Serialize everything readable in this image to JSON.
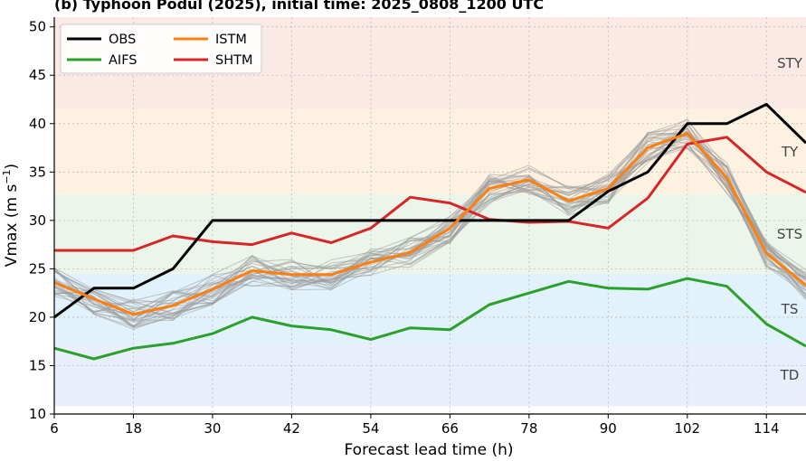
{
  "chart_data": {
    "type": "line",
    "title": "(b) Typhoon Podul (2025), initial time: 2025_0808_1200 UTC",
    "xlabel": "Forecast lead time (h)",
    "ylabel_main": "Vmax (m s",
    "ylabel_sup": "−1",
    "ylabel_close": ")",
    "xlim": [
      6,
      120
    ],
    "ylim": [
      10,
      51
    ],
    "x_ticks": [
      6,
      18,
      30,
      42,
      54,
      66,
      78,
      90,
      102,
      114
    ],
    "y_ticks": [
      10,
      15,
      20,
      25,
      30,
      35,
      40,
      45,
      50
    ],
    "grid": true,
    "legend_position": "top-left",
    "x": [
      6,
      12,
      18,
      24,
      30,
      36,
      42,
      48,
      54,
      60,
      66,
      72,
      78,
      84,
      90,
      96,
      102,
      108,
      114,
      120
    ],
    "bands": [
      {
        "label": "TD",
        "from": 10.8,
        "to": 17.2,
        "color": "#e8eefa"
      },
      {
        "label": "TS",
        "from": 17.2,
        "to": 24.5,
        "color": "#e2f2fb"
      },
      {
        "label": "STS",
        "from": 24.5,
        "to": 32.7,
        "color": "#ecf5ea"
      },
      {
        "label": "TY",
        "from": 32.7,
        "to": 41.5,
        "color": "#fdf1e1"
      },
      {
        "label": "STY",
        "from": 41.5,
        "to": 51,
        "color": "#fbe9e6"
      }
    ],
    "series": [
      {
        "name": "OBS",
        "color": "#000000",
        "values": [
          20,
          23,
          23,
          25,
          30,
          30,
          30,
          30,
          30,
          30,
          30,
          30,
          30,
          30,
          33,
          35,
          40,
          40,
          42,
          38
        ]
      },
      {
        "name": "AIFS",
        "color": "#2ca02c",
        "values": [
          16.8,
          15.7,
          16.8,
          17.3,
          18.3,
          20,
          19.1,
          18.7,
          17.7,
          18.9,
          18.7,
          21.3,
          22.5,
          23.7,
          23,
          22.9,
          24,
          23.2,
          19.3,
          17
        ]
      },
      {
        "name": "ISTM",
        "color": "#ff7f0e",
        "values": [
          23.6,
          21.9,
          20.3,
          21.2,
          22.9,
          24.8,
          24.4,
          24.4,
          25.7,
          26.7,
          29.2,
          33.3,
          34.2,
          32,
          33.3,
          37.5,
          39,
          34.4,
          26.6,
          23.3
        ]
      },
      {
        "name": "SHTM",
        "color": "#d62728",
        "values": [
          26.9,
          26.9,
          26.9,
          28.4,
          27.8,
          27.5,
          28.7,
          27.7,
          29.2,
          32.4,
          31.8,
          30.1,
          29.8,
          29.9,
          29.2,
          32.3,
          37.9,
          38.6,
          35,
          32.9
        ]
      }
    ]
  }
}
